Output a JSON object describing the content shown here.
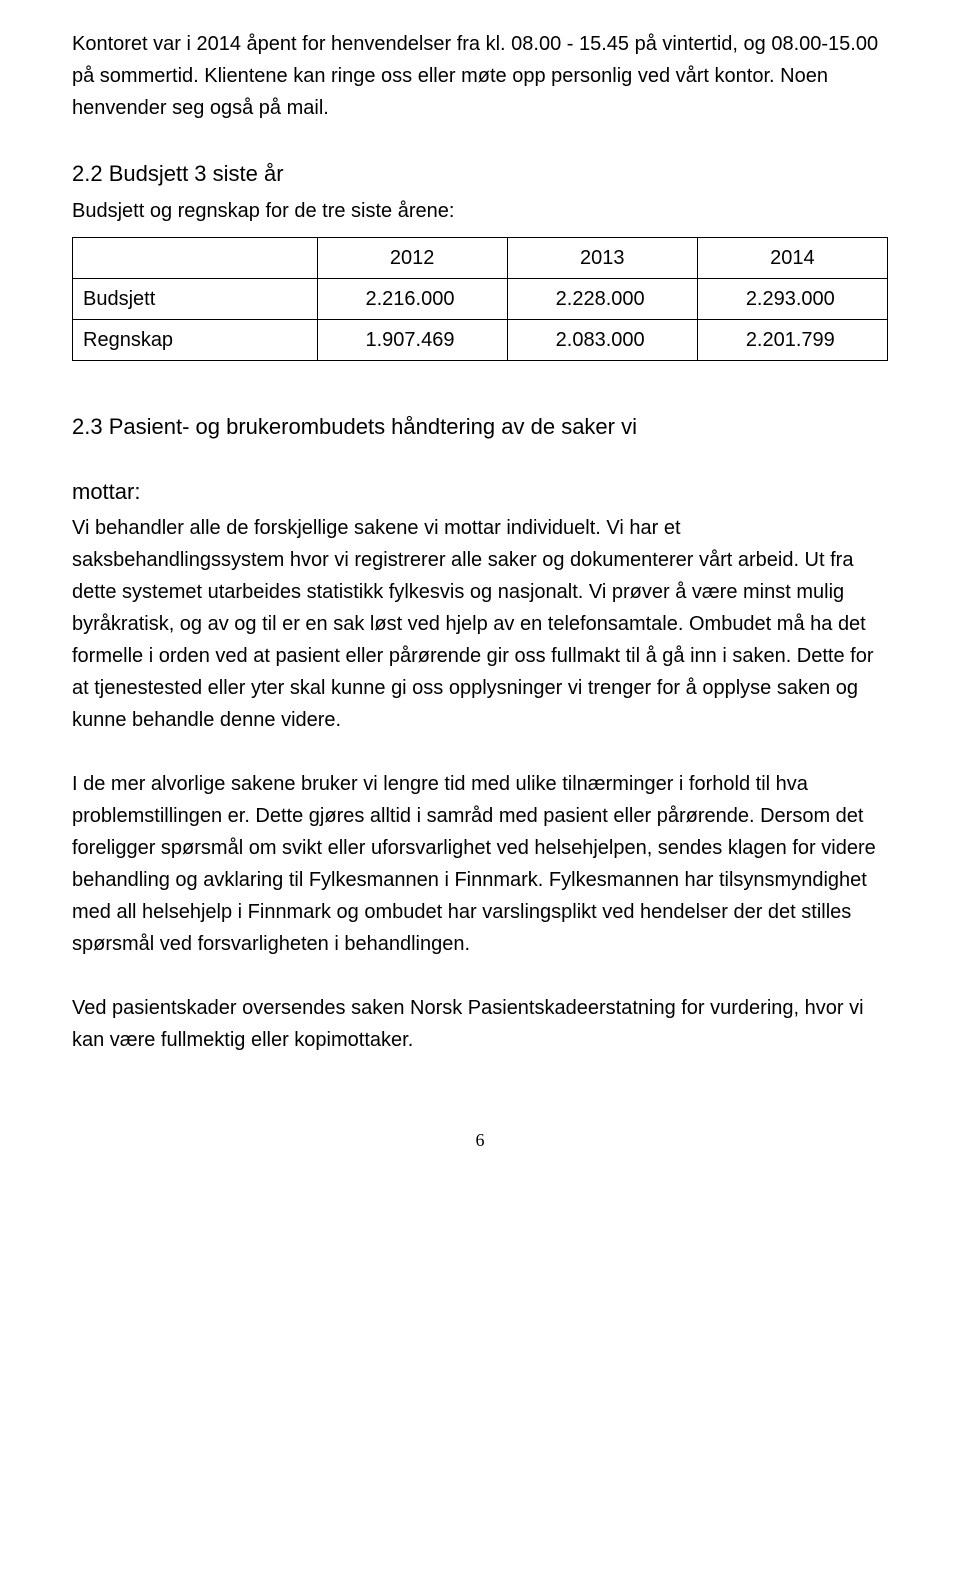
{
  "intro_paragraph": "Kontoret var i 2014 åpent for henvendelser fra kl. 08.00 - 15.45 på vintertid, og 08.00-15.00 på sommertid. Klientene kan ringe oss eller møte opp personlig ved vårt kontor. Noen henvender seg også på mail.",
  "section22": {
    "heading": "2.2 Budsjett 3 siste år",
    "subheading": "Budsjett og regnskap for de tre siste årene:",
    "table": {
      "columns": [
        "",
        "2012",
        "2013",
        "2014"
      ],
      "rows": [
        [
          "Budsjett",
          "2.216.000",
          "2.228.000",
          "2.293.000"
        ],
        [
          "Regnskap",
          "1.907.469",
          "2.083.000",
          "2.201.799"
        ]
      ]
    }
  },
  "section23": {
    "heading_line1": "2.3 Pasient- og brukerombudets håndtering av de saker vi",
    "heading_line2": "mottar:",
    "p1": "Vi behandler alle de forskjellige sakene vi mottar individuelt. Vi har et saksbehandlingssystem hvor vi registrerer alle saker og dokumenterer vårt arbeid. Ut fra dette systemet utarbeides statistikk fylkesvis og nasjonalt. Vi prøver å være minst mulig byråkratisk, og av og til er en sak løst ved hjelp av en telefonsamtale. Ombudet må ha det formelle i orden ved at pasient eller pårørende gir oss fullmakt til å gå inn i saken. Dette for at tjenestested eller yter skal kunne gi oss opplysninger vi trenger for å opplyse saken og kunne behandle denne videre.",
    "p2": "I de mer alvorlige sakene bruker vi lengre tid med ulike tilnærminger i forhold til hva problemstillingen er. Dette gjøres alltid i samråd med pasient eller pårørende. Dersom det foreligger spørsmål om svikt eller uforsvarlighet ved helsehjelpen, sendes klagen for videre behandling og avklaring til Fylkesmannen i Finnmark. Fylkesmannen har tilsynsmyndighet med all helsehjelp i Finnmark og ombudet har varslingsplikt ved hendelser der det stilles spørsmål ved forsvarligheten i behandlingen.",
    "p3": "Ved pasientskader oversendes saken Norsk Pasientskadeerstatning for vurdering, hvor vi kan være fullmektig eller kopimottaker."
  },
  "page_number": "6"
}
